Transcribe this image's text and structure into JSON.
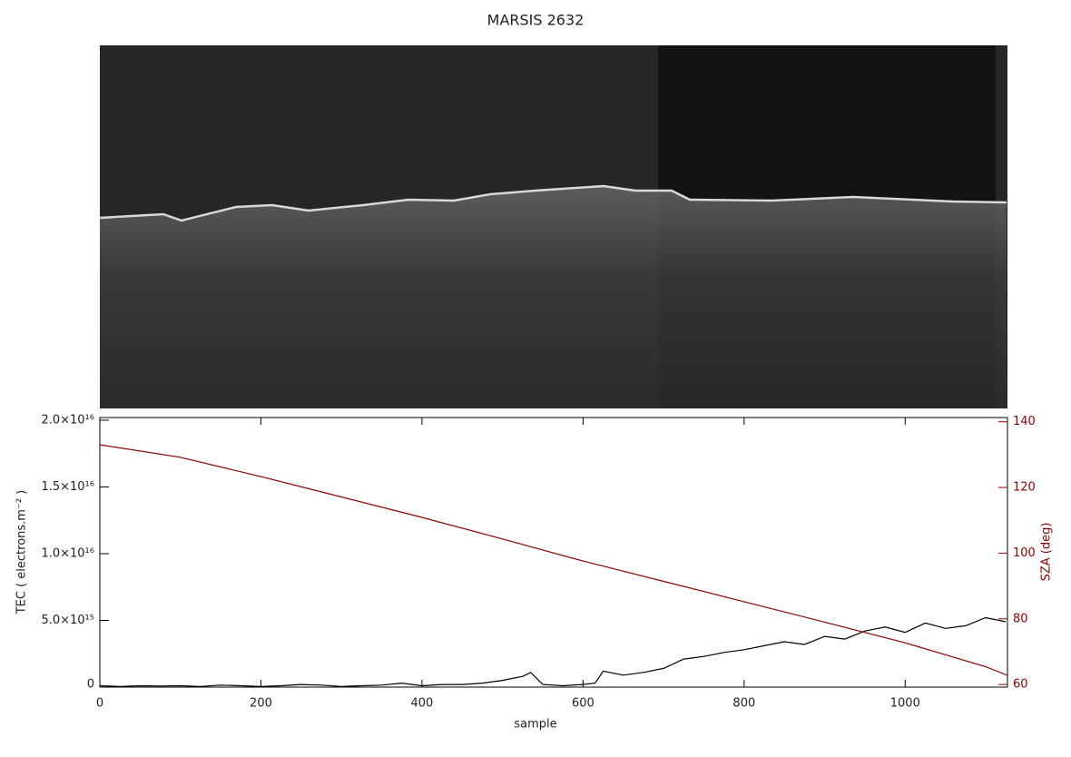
{
  "chart_data": {
    "type": "line",
    "title": "MARSIS 2632",
    "xlabel": "sample",
    "ylabel": "TEC ( electrons.m⁻² )",
    "y2label": "SZA (deg)",
    "xlim": [
      0,
      1127
    ],
    "xticks": [
      0,
      200,
      400,
      600,
      800,
      1000
    ],
    "ylim": [
      0,
      2.02e+16
    ],
    "yticks": [
      0,
      {
        "value": 5000000000000000.0,
        "label": "5.0×10¹⁵"
      },
      {
        "value": 1e+16,
        "label": "1.0×10¹⁶"
      },
      {
        "value": 1.5e+16,
        "label": "1.5×10¹⁶"
      },
      {
        "value": 2e+16,
        "label": "2.0×10¹⁶"
      }
    ],
    "y2lim": [
      59.2,
      141.3
    ],
    "y2ticks": [
      60,
      80,
      100,
      120,
      140
    ],
    "y2color": "#8b0000",
    "series": [
      {
        "name": "TEC",
        "color": "#000000",
        "axis": "y",
        "x": [
          0,
          25,
          50,
          75,
          100,
          125,
          150,
          175,
          200,
          225,
          250,
          275,
          300,
          325,
          350,
          375,
          400,
          425,
          450,
          475,
          500,
          525,
          535,
          550,
          575,
          600,
          615,
          625,
          650,
          675,
          700,
          725,
          750,
          775,
          800,
          825,
          850,
          875,
          900,
          925,
          950,
          975,
          1000,
          1025,
          1050,
          1075,
          1100,
          1125
        ],
        "values": [
          100000000000000.0,
          50000000000000.0,
          100000000000000.0,
          80000000000000.0,
          100000000000000.0,
          50000000000000.0,
          150000000000000.0,
          100000000000000.0,
          50000000000000.0,
          100000000000000.0,
          200000000000000.0,
          150000000000000.0,
          50000000000000.0,
          100000000000000.0,
          150000000000000.0,
          300000000000000.0,
          100000000000000.0,
          200000000000000.0,
          200000000000000.0,
          300000000000000.0,
          500000000000000.0,
          800000000000000.0,
          1100000000000000.0,
          200000000000000.0,
          100000000000000.0,
          200000000000000.0,
          300000000000000.0,
          1200000000000000.0,
          900000000000000.0,
          1100000000000000.0,
          1400000000000000.0,
          2100000000000000.0,
          2300000000000000.0,
          2600000000000000.0,
          2800000000000000.0,
          3100000000000000.0,
          3400000000000000.0,
          3200000000000000.0,
          3800000000000000.0,
          3600000000000000.0,
          4200000000000000.0,
          4500000000000000.0,
          4100000000000000.0,
          4800000000000000.0,
          4400000000000000.0,
          4600000000000000.0,
          5200000000000000.0,
          4900000000000000.0
        ]
      },
      {
        "name": "SZA",
        "color": "#8b0000",
        "axis": "y2",
        "x": [
          0,
          100,
          200,
          300,
          400,
          500,
          600,
          700,
          800,
          900,
          1000,
          1100,
          1127
        ],
        "values": [
          133.0,
          129.2,
          123.3,
          117.1,
          110.9,
          104.3,
          97.6,
          91.4,
          85.2,
          79.0,
          72.7,
          65.4,
          62.8
        ]
      }
    ]
  }
}
